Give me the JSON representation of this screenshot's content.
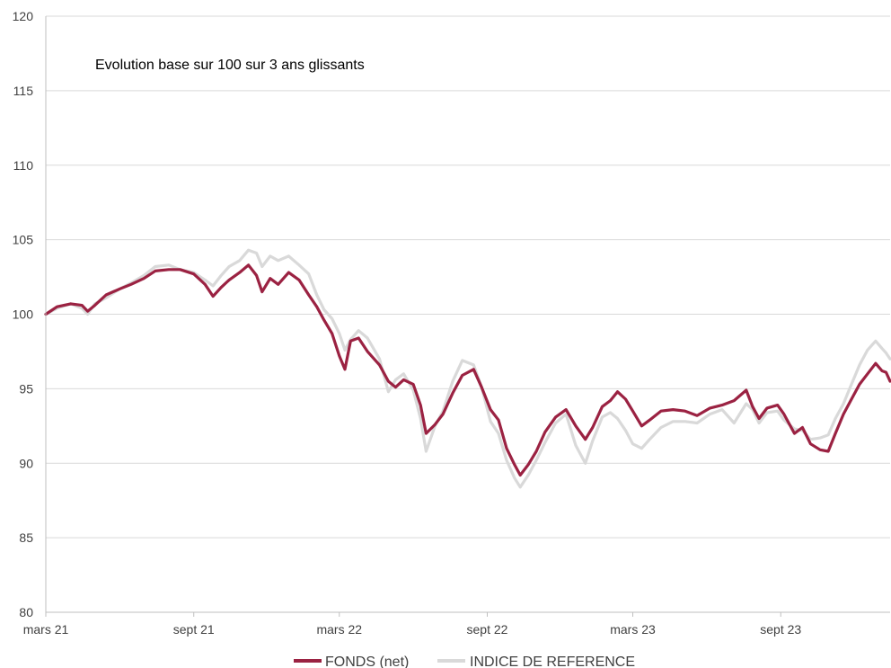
{
  "chart_data": {
    "type": "line",
    "title": "Evolution base sur 100 sur 3 ans glissants",
    "xlabel": "",
    "ylabel": "",
    "ylim": [
      80,
      120
    ],
    "yticks": [
      "80",
      "85",
      "90",
      "95",
      "100",
      "105",
      "110",
      "115",
      "120"
    ],
    "xlim": [
      "2021-03-01",
      "2024-01-15"
    ],
    "xticks": [
      {
        "date": "2021-03-01",
        "label": "mars 21"
      },
      {
        "date": "2021-09-01",
        "label": "sept 21"
      },
      {
        "date": "2022-03-01",
        "label": "mars 22"
      },
      {
        "date": "2022-09-01",
        "label": "sept 22"
      },
      {
        "date": "2023-03-01",
        "label": "mars 23"
      },
      {
        "date": "2023-09-01",
        "label": "sept 23"
      }
    ],
    "grid": "horizontal",
    "legend_position": "bottom",
    "series": [
      {
        "name": "FONDS (net)",
        "color": "#9b2242",
        "points": [
          [
            "2021-03-01",
            100.0
          ],
          [
            "2021-03-15",
            100.5
          ],
          [
            "2021-04-01",
            100.7
          ],
          [
            "2021-04-15",
            100.6
          ],
          [
            "2021-04-22",
            100.2
          ],
          [
            "2021-05-01",
            100.6
          ],
          [
            "2021-05-15",
            101.3
          ],
          [
            "2021-06-01",
            101.7
          ],
          [
            "2021-06-15",
            102.0
          ],
          [
            "2021-07-01",
            102.4
          ],
          [
            "2021-07-15",
            102.9
          ],
          [
            "2021-08-01",
            103.0
          ],
          [
            "2021-08-15",
            103.0
          ],
          [
            "2021-09-01",
            102.7
          ],
          [
            "2021-09-15",
            102.0
          ],
          [
            "2021-09-25",
            101.2
          ],
          [
            "2021-10-05",
            101.8
          ],
          [
            "2021-10-15",
            102.3
          ],
          [
            "2021-10-28",
            102.8
          ],
          [
            "2021-11-08",
            103.3
          ],
          [
            "2021-11-18",
            102.6
          ],
          [
            "2021-11-25",
            101.5
          ],
          [
            "2021-12-05",
            102.4
          ],
          [
            "2021-12-15",
            102.0
          ],
          [
            "2021-12-28",
            102.8
          ],
          [
            "2022-01-10",
            102.3
          ],
          [
            "2022-01-22",
            101.3
          ],
          [
            "2022-02-01",
            100.5
          ],
          [
            "2022-02-10",
            99.6
          ],
          [
            "2022-02-20",
            98.7
          ],
          [
            "2022-03-01",
            97.2
          ],
          [
            "2022-03-08",
            96.3
          ],
          [
            "2022-03-15",
            98.2
          ],
          [
            "2022-03-25",
            98.4
          ],
          [
            "2022-04-05",
            97.5
          ],
          [
            "2022-04-20",
            96.6
          ],
          [
            "2022-05-01",
            95.5
          ],
          [
            "2022-05-10",
            95.1
          ],
          [
            "2022-05-20",
            95.6
          ],
          [
            "2022-06-01",
            95.3
          ],
          [
            "2022-06-10",
            93.9
          ],
          [
            "2022-06-17",
            92.0
          ],
          [
            "2022-06-28",
            92.6
          ],
          [
            "2022-07-08",
            93.3
          ],
          [
            "2022-07-20",
            94.7
          ],
          [
            "2022-08-01",
            95.9
          ],
          [
            "2022-08-15",
            96.3
          ],
          [
            "2022-08-25",
            95.1
          ],
          [
            "2022-09-05",
            93.6
          ],
          [
            "2022-09-15",
            92.9
          ],
          [
            "2022-09-25",
            91.0
          ],
          [
            "2022-10-05",
            89.9
          ],
          [
            "2022-10-12",
            89.2
          ],
          [
            "2022-10-22",
            89.9
          ],
          [
            "2022-11-01",
            90.8
          ],
          [
            "2022-11-12",
            92.1
          ],
          [
            "2022-11-25",
            93.1
          ],
          [
            "2022-12-08",
            93.6
          ],
          [
            "2022-12-20",
            92.5
          ],
          [
            "2023-01-01",
            91.6
          ],
          [
            "2023-01-10",
            92.4
          ],
          [
            "2023-01-22",
            93.8
          ],
          [
            "2023-02-01",
            94.2
          ],
          [
            "2023-02-10",
            94.8
          ],
          [
            "2023-02-20",
            94.3
          ],
          [
            "2023-03-01",
            93.5
          ],
          [
            "2023-03-12",
            92.5
          ],
          [
            "2023-03-22",
            92.9
          ],
          [
            "2023-04-05",
            93.5
          ],
          [
            "2023-04-20",
            93.6
          ],
          [
            "2023-05-05",
            93.5
          ],
          [
            "2023-05-20",
            93.2
          ],
          [
            "2023-06-05",
            93.7
          ],
          [
            "2023-06-20",
            93.9
          ],
          [
            "2023-07-05",
            94.2
          ],
          [
            "2023-07-20",
            94.9
          ],
          [
            "2023-07-28",
            93.8
          ],
          [
            "2023-08-05",
            93.0
          ],
          [
            "2023-08-15",
            93.7
          ],
          [
            "2023-08-28",
            93.9
          ],
          [
            "2023-09-05",
            93.3
          ],
          [
            "2023-09-18",
            92.0
          ],
          [
            "2023-09-28",
            92.4
          ],
          [
            "2023-10-08",
            91.3
          ],
          [
            "2023-10-20",
            90.9
          ],
          [
            "2023-10-30",
            90.8
          ],
          [
            "2023-11-08",
            92.0
          ],
          [
            "2023-11-18",
            93.3
          ],
          [
            "2023-11-28",
            94.3
          ],
          [
            "2023-12-08",
            95.3
          ],
          [
            "2023-12-18",
            96.0
          ],
          [
            "2023-12-28",
            96.7
          ],
          [
            "2024-01-05",
            96.2
          ],
          [
            "2024-01-10",
            96.1
          ],
          [
            "2024-01-15",
            95.5
          ]
        ]
      },
      {
        "name": "INDICE DE REFERENCE",
        "color": "#d9d9d9",
        "points": [
          [
            "2021-03-01",
            100.0
          ],
          [
            "2021-03-15",
            100.4
          ],
          [
            "2021-04-01",
            100.7
          ],
          [
            "2021-04-15",
            100.4
          ],
          [
            "2021-04-22",
            100.0
          ],
          [
            "2021-05-01",
            100.7
          ],
          [
            "2021-05-15",
            101.1
          ],
          [
            "2021-06-01",
            101.7
          ],
          [
            "2021-06-15",
            102.1
          ],
          [
            "2021-07-01",
            102.6
          ],
          [
            "2021-07-15",
            103.2
          ],
          [
            "2021-08-01",
            103.3
          ],
          [
            "2021-08-15",
            103.0
          ],
          [
            "2021-09-01",
            102.8
          ],
          [
            "2021-09-15",
            102.3
          ],
          [
            "2021-09-25",
            101.9
          ],
          [
            "2021-10-05",
            102.6
          ],
          [
            "2021-10-15",
            103.2
          ],
          [
            "2021-10-28",
            103.6
          ],
          [
            "2021-11-08",
            104.3
          ],
          [
            "2021-11-18",
            104.1
          ],
          [
            "2021-11-25",
            103.2
          ],
          [
            "2021-12-05",
            103.9
          ],
          [
            "2021-12-15",
            103.6
          ],
          [
            "2021-12-28",
            103.9
          ],
          [
            "2022-01-10",
            103.3
          ],
          [
            "2022-01-22",
            102.7
          ],
          [
            "2022-02-01",
            101.3
          ],
          [
            "2022-02-10",
            100.3
          ],
          [
            "2022-02-20",
            99.7
          ],
          [
            "2022-03-01",
            98.7
          ],
          [
            "2022-03-08",
            97.6
          ],
          [
            "2022-03-15",
            98.3
          ],
          [
            "2022-03-25",
            98.9
          ],
          [
            "2022-04-05",
            98.4
          ],
          [
            "2022-04-20",
            97.0
          ],
          [
            "2022-05-01",
            94.8
          ],
          [
            "2022-05-10",
            95.6
          ],
          [
            "2022-05-20",
            96.0
          ],
          [
            "2022-06-01",
            94.9
          ],
          [
            "2022-06-10",
            93.0
          ],
          [
            "2022-06-17",
            90.8
          ],
          [
            "2022-06-28",
            92.5
          ],
          [
            "2022-07-08",
            93.5
          ],
          [
            "2022-07-20",
            95.5
          ],
          [
            "2022-08-01",
            96.9
          ],
          [
            "2022-08-15",
            96.6
          ],
          [
            "2022-08-25",
            95.1
          ],
          [
            "2022-09-05",
            92.8
          ],
          [
            "2022-09-15",
            92.0
          ],
          [
            "2022-09-25",
            90.2
          ],
          [
            "2022-10-05",
            89.0
          ],
          [
            "2022-10-12",
            88.4
          ],
          [
            "2022-10-22",
            89.2
          ],
          [
            "2022-11-01",
            90.2
          ],
          [
            "2022-11-12",
            91.4
          ],
          [
            "2022-11-25",
            92.7
          ],
          [
            "2022-12-08",
            93.3
          ],
          [
            "2022-12-20",
            91.2
          ],
          [
            "2023-01-01",
            90.0
          ],
          [
            "2023-01-10",
            91.5
          ],
          [
            "2023-01-22",
            93.1
          ],
          [
            "2023-02-01",
            93.4
          ],
          [
            "2023-02-10",
            93.0
          ],
          [
            "2023-02-20",
            92.2
          ],
          [
            "2023-03-01",
            91.3
          ],
          [
            "2023-03-12",
            91.0
          ],
          [
            "2023-03-22",
            91.6
          ],
          [
            "2023-04-05",
            92.4
          ],
          [
            "2023-04-20",
            92.8
          ],
          [
            "2023-05-05",
            92.8
          ],
          [
            "2023-05-20",
            92.7
          ],
          [
            "2023-06-05",
            93.3
          ],
          [
            "2023-06-20",
            93.6
          ],
          [
            "2023-07-05",
            92.7
          ],
          [
            "2023-07-20",
            94.0
          ],
          [
            "2023-07-28",
            93.6
          ],
          [
            "2023-08-05",
            92.7
          ],
          [
            "2023-08-15",
            93.4
          ],
          [
            "2023-08-28",
            93.5
          ],
          [
            "2023-09-05",
            92.9
          ],
          [
            "2023-09-18",
            92.3
          ],
          [
            "2023-09-28",
            92.2
          ],
          [
            "2023-10-08",
            91.6
          ],
          [
            "2023-10-20",
            91.7
          ],
          [
            "2023-10-30",
            91.9
          ],
          [
            "2023-11-08",
            93.0
          ],
          [
            "2023-11-18",
            94.0
          ],
          [
            "2023-11-28",
            95.3
          ],
          [
            "2023-12-08",
            96.6
          ],
          [
            "2023-12-18",
            97.6
          ],
          [
            "2023-12-28",
            98.2
          ],
          [
            "2024-01-05",
            97.7
          ],
          [
            "2024-01-10",
            97.4
          ],
          [
            "2024-01-15",
            97.0
          ]
        ]
      }
    ]
  }
}
